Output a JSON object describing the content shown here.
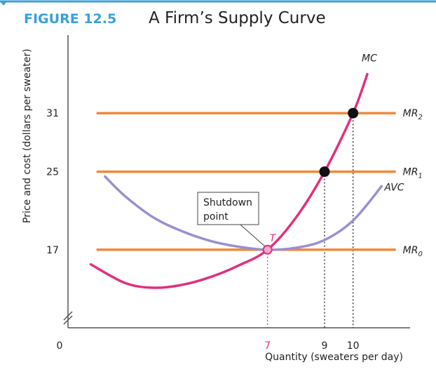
{
  "figure": {
    "label": "FIGURE 12.5",
    "title": "A Firm’s Supply Curve"
  },
  "colors": {
    "accent": "#3aa0d8",
    "mr_lines": "#f0883a",
    "mc_curve": "#e0307f",
    "avc_curve": "#9b8fd0",
    "point": "#111111",
    "shutdown_point": "#e0307f"
  },
  "callout": {
    "line1": "Shutdown",
    "line2": "point"
  },
  "chart_data": {
    "type": "line",
    "xlabel": "Quantity (sweaters per day)",
    "ylabel": "Price and cost (dollars per sweater)",
    "origin_label": "0",
    "xlim": [
      0,
      12
    ],
    "ylim": [
      9,
      39
    ],
    "x_ticks": [
      7,
      9,
      10
    ],
    "y_ticks": [
      17,
      25,
      31
    ],
    "x_tick_labels": [
      "7",
      "9",
      "10"
    ],
    "y_tick_labels": [
      "17",
      "25",
      "31"
    ],
    "highlight_tick": "7",
    "series": [
      {
        "name": "MC",
        "kind": "curve",
        "x": [
          0.8,
          2,
          3,
          4,
          5,
          6,
          7,
          8,
          9,
          10,
          10.5
        ],
        "y": [
          15.5,
          13.6,
          13.1,
          13.4,
          14.2,
          15.4,
          17,
          20.3,
          25,
          31,
          35
        ]
      },
      {
        "name": "AVC",
        "kind": "curve",
        "x": [
          1.3,
          2,
          3,
          4,
          5,
          6,
          7,
          8,
          9,
          10,
          11
        ],
        "y": [
          24.5,
          22.5,
          20.3,
          18.9,
          17.9,
          17.3,
          17,
          17.2,
          18,
          20,
          23.5
        ]
      },
      {
        "name": "MR",
        "subscript": "0",
        "kind": "hline",
        "y": 17,
        "x": [
          1,
          11.5
        ]
      },
      {
        "name": "MR",
        "subscript": "1",
        "kind": "hline",
        "y": 25,
        "x": [
          1,
          11.5
        ]
      },
      {
        "name": "MR",
        "subscript": "2",
        "kind": "hline",
        "y": 31,
        "x": [
          1,
          11.5
        ]
      }
    ],
    "points": [
      {
        "label": "T",
        "x": 7,
        "y": 17,
        "style": "shutdown"
      },
      {
        "label": "",
        "x": 9,
        "y": 25,
        "style": "equilibrium"
      },
      {
        "label": "",
        "x": 10,
        "y": 31,
        "style": "equilibrium"
      }
    ]
  }
}
